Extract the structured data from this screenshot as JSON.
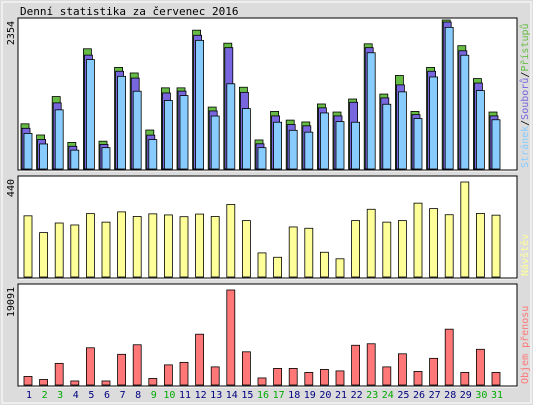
{
  "chart_data": {
    "type": "bar",
    "title": "Denní statistika za červenec 2016",
    "categories": [
      "1",
      "2",
      "3",
      "4",
      "5",
      "6",
      "7",
      "8",
      "9",
      "10",
      "11",
      "12",
      "13",
      "14",
      "15",
      "16",
      "17",
      "18",
      "19",
      "20",
      "21",
      "22",
      "23",
      "24",
      "25",
      "26",
      "27",
      "28",
      "29",
      "30",
      "31"
    ],
    "weekend_days": [
      "2",
      "3",
      "9",
      "10",
      "16",
      "17",
      "23",
      "24",
      "30",
      "31"
    ],
    "panels": [
      {
        "id": "hits",
        "ymax_label": "2354",
        "ymax": 2354,
        "legend": {
          "strings": [
            "Stránek",
            "/",
            "Souborů",
            "/",
            "Přístupů"
          ]
        },
        "series": [
          {
            "name": "Přístupů",
            "color": "#66bb44",
            "values": [
              680,
              500,
              1120,
              380,
              1890,
              400,
              1590,
              1500,
              580,
              1260,
              1260,
              2190,
              950,
              1980,
              1270,
              420,
              880,
              740,
              710,
              1000,
              870,
              1080,
              1970,
              1160,
              1460,
              880,
              1590,
              2354,
              1940,
              1410,
              870
            ]
          },
          {
            "name": "Souborů",
            "color": "#7766dd",
            "values": [
              640,
              460,
              1050,
              350,
              1820,
              380,
              1560,
              1450,
              530,
              1210,
              1240,
              2140,
              920,
              1940,
              1220,
              390,
              840,
              700,
              680,
              970,
              840,
              1060,
              1940,
              1130,
              1340,
              860,
              1560,
              2354,
              1890,
              1370,
              840
            ]
          },
          {
            "name": "Stránek",
            "color": "#88ccff",
            "values": [
              590,
              420,
              970,
              320,
              1780,
              360,
              1510,
              1270,
              490,
              1120,
              1200,
              2090,
              870,
              1390,
              990,
              360,
              770,
              640,
              610,
              920,
              780,
              770,
              1890,
              1060,
              1260,
              830,
              1500,
              2300,
              1850,
              1280,
              810
            ]
          }
        ]
      },
      {
        "id": "visits",
        "ymax_label": "440",
        "ymax": 440,
        "legend": {
          "strings": [
            "Návštěv"
          ]
        },
        "series": [
          {
            "name": "Návštěv",
            "color": "#ffff99",
            "values": [
              285,
              208,
              252,
              243,
              295,
              256,
              303,
              282,
              294,
              289,
              281,
              293,
              282,
              337,
              263,
              115,
              95,
              234,
              228,
              118,
              88,
              263,
              315,
              256,
              263,
              343,
              318,
              290,
              440,
              296,
              288
            ]
          }
        ]
      },
      {
        "id": "volume",
        "ymax_label": "19091",
        "ymax": 19091,
        "legend": {
          "strings": [
            "Objem přenosu"
          ]
        },
        "series": [
          {
            "name": "Objem přenosu",
            "color": "#ff7777",
            "values": [
              1900,
              1300,
              4500,
              1000,
              7600,
              1000,
              6300,
              8200,
              1500,
              4200,
              4700,
              10300,
              3800,
              19091,
              6800,
              1600,
              3500,
              3500,
              2700,
              3300,
              3000,
              8100,
              8400,
              3800,
              6400,
              2900,
              5500,
              11300,
              2700,
              7300,
              2700
            ]
          }
        ]
      }
    ],
    "colors": {
      "weekday_label": "#000080",
      "weekend_label": "#00aa00",
      "panel_bg": "#ffffff",
      "frame": "#000000",
      "outer_bg": "#dcdcdc"
    }
  }
}
